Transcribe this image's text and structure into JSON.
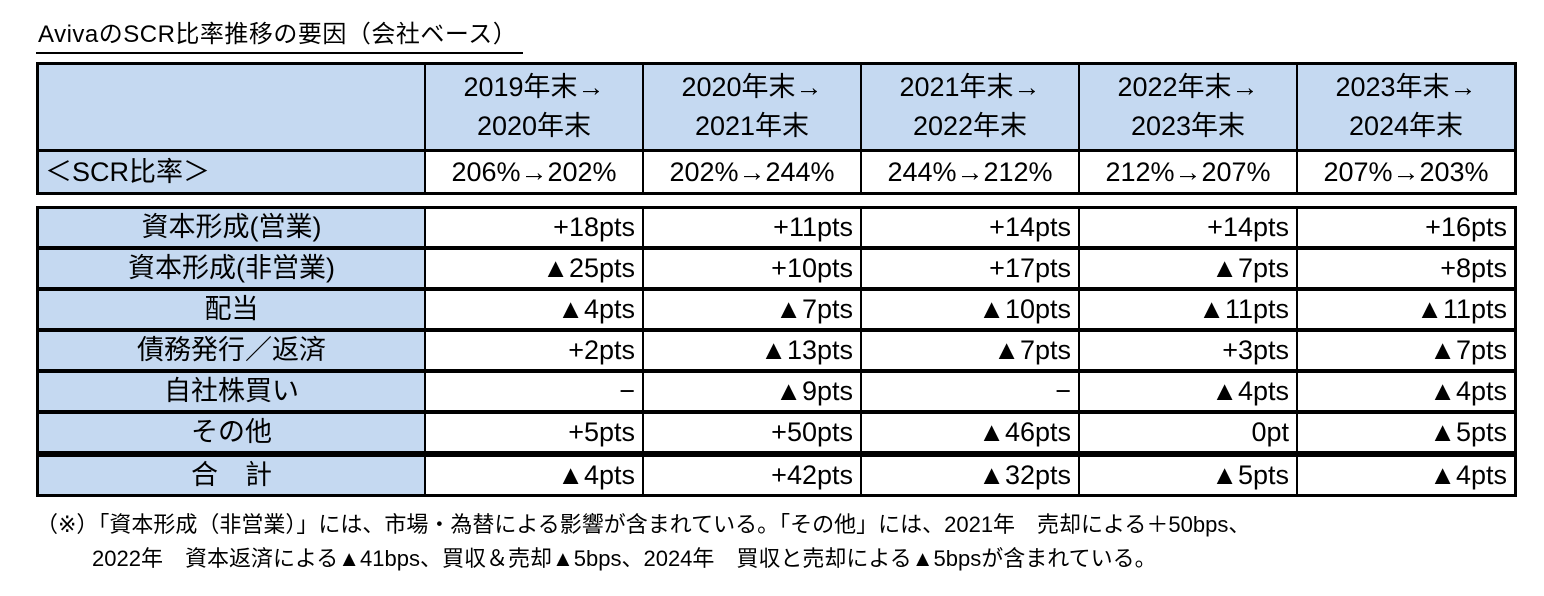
{
  "title": "AvivaのSCR比率推移の要因（会社ベース）",
  "colors": {
    "header_bg": "#C5D9F1",
    "border": "#000000",
    "text": "#000000"
  },
  "table": {
    "period_headers": [
      {
        "line1": "2019年末→",
        "line2": "2020年末"
      },
      {
        "line1": "2020年末→",
        "line2": "2021年末"
      },
      {
        "line1": "2021年末→",
        "line2": "2022年末"
      },
      {
        "line1": "2022年末→",
        "line2": "2023年末"
      },
      {
        "line1": "2023年末→",
        "line2": "2024年末"
      }
    ],
    "scr_row": {
      "label": "＜SCR比率＞",
      "values": [
        "206%→202%",
        "202%→244%",
        "244%→212%",
        "212%→207%",
        "207%→203%"
      ]
    },
    "factor_rows": [
      {
        "label": "資本形成(営業)",
        "values": [
          "+18pts",
          "+11pts",
          "+14pts",
          "+14pts",
          "+16pts"
        ]
      },
      {
        "label": "資本形成(非営業)",
        "values": [
          "▲25pts",
          "+10pts",
          "+17pts",
          "▲7pts",
          "+8pts"
        ]
      },
      {
        "label": "配当",
        "values": [
          "▲4pts",
          "▲7pts",
          "▲10pts",
          "▲11pts",
          "▲11pts"
        ]
      },
      {
        "label": "債務発行／返済",
        "values": [
          "+2pts",
          "▲13pts",
          "▲7pts",
          "+3pts",
          "▲7pts"
        ]
      },
      {
        "label": "自社株買い",
        "values": [
          "−",
          "▲9pts",
          "−",
          "▲4pts",
          "▲4pts"
        ]
      },
      {
        "label": "その他",
        "values": [
          "+5pts",
          "+50pts",
          "▲46pts",
          "0pt",
          "▲5pts"
        ]
      },
      {
        "label": "合　計",
        "values": [
          "▲4pts",
          "+42pts",
          "▲32pts",
          "▲5pts",
          "▲4pts"
        ],
        "is_total": true
      }
    ]
  },
  "footnote": {
    "line1": "（※）「資本形成（非営業）」には、市場・為替による影響が含まれている。「その他」には、2021年　売却による＋50bps、",
    "line2": "2022年　資本返済による▲41bps、買収＆売却▲5bps、2024年　買収と売却による▲5bpsが含まれている。"
  }
}
